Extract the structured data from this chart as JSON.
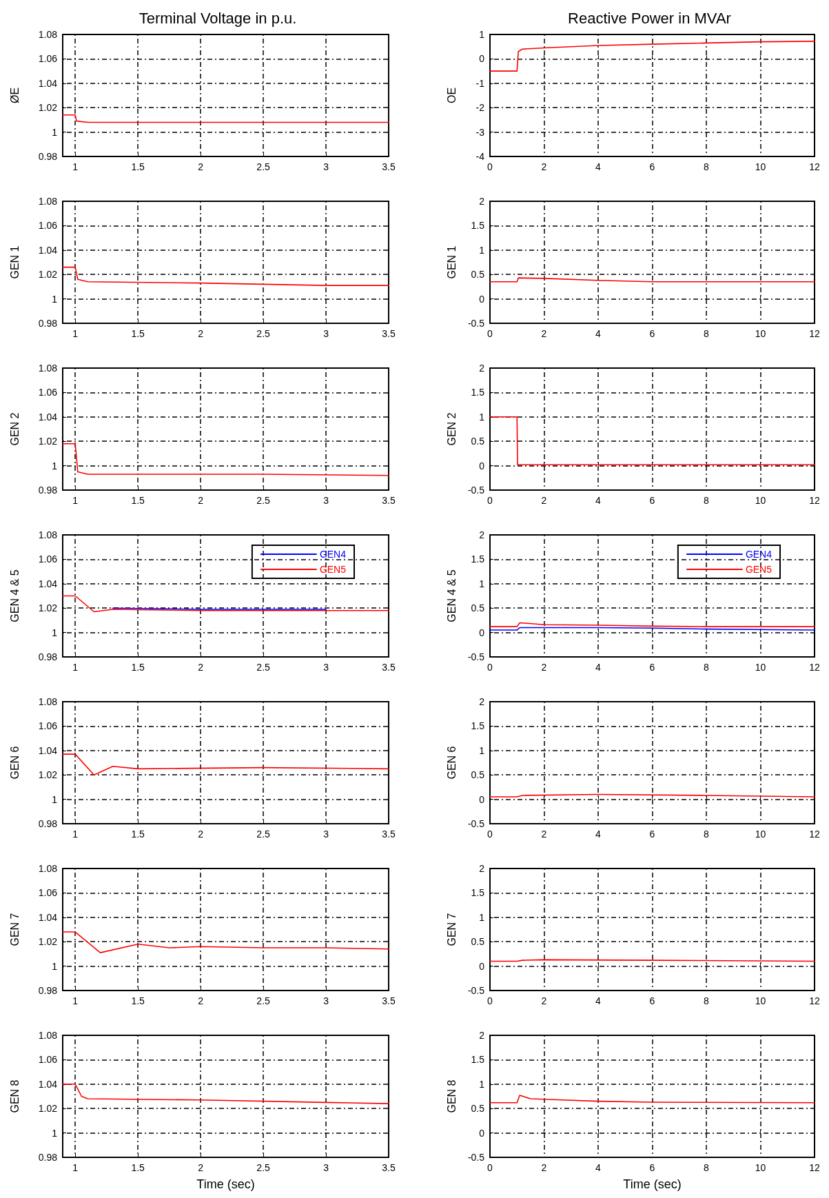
{
  "chart_data": [
    {
      "type": "line",
      "title": "Terminal Voltage in p.u.",
      "ylabel": "ØE",
      "x": [
        0.9,
        1,
        1.01,
        1.1,
        2,
        3,
        3.5
      ],
      "series": [
        {
          "color": "#ff0000",
          "values": [
            1.014,
            1.014,
            1.009,
            1.008,
            1.008,
            1.008,
            1.008
          ]
        }
      ],
      "xlim": [
        0.9,
        3.5
      ],
      "xticks": [
        1,
        1.5,
        2,
        2.5,
        3,
        3.5
      ],
      "ylim": [
        0.98,
        1.08
      ],
      "yticks": [
        0.98,
        1,
        1.02,
        1.04,
        1.06,
        1.08
      ],
      "grid": true
    },
    {
      "type": "line",
      "title": "Reactive Power in MVAr",
      "ylabel": "OE",
      "x": [
        0,
        1,
        1.05,
        1.2,
        2,
        4,
        6,
        8,
        10,
        12
      ],
      "series": [
        {
          "color": "#ff0000",
          "values": [
            -0.5,
            -0.5,
            0.3,
            0.4,
            0.45,
            0.55,
            0.6,
            0.65,
            0.7,
            0.72
          ]
        }
      ],
      "xlim": [
        0,
        12
      ],
      "xticks": [
        0,
        2,
        4,
        6,
        8,
        10,
        12
      ],
      "ylim": [
        -4,
        1
      ],
      "yticks": [
        -4,
        -3,
        -2,
        -1,
        0,
        1
      ],
      "grid": true
    },
    {
      "type": "line",
      "ylabel": "GEN 1",
      "x": [
        0.9,
        1,
        1.02,
        1.1,
        2,
        3,
        3.5
      ],
      "series": [
        {
          "color": "#ff0000",
          "values": [
            1.026,
            1.026,
            1.016,
            1.014,
            1.013,
            1.011,
            1.011
          ]
        }
      ],
      "xlim": [
        0.9,
        3.5
      ],
      "xticks": [
        1,
        1.5,
        2,
        2.5,
        3,
        3.5
      ],
      "ylim": [
        0.98,
        1.08
      ],
      "yticks": [
        0.98,
        1,
        1.02,
        1.04,
        1.06,
        1.08
      ],
      "grid": true
    },
    {
      "type": "line",
      "ylabel": "GEN 1",
      "x": [
        0,
        1,
        1.05,
        2,
        4,
        6,
        12
      ],
      "series": [
        {
          "color": "#ff0000",
          "values": [
            0.35,
            0.35,
            0.43,
            0.42,
            0.38,
            0.35,
            0.35
          ]
        }
      ],
      "xlim": [
        0,
        12
      ],
      "xticks": [
        0,
        2,
        4,
        6,
        8,
        10,
        12
      ],
      "ylim": [
        -0.5,
        2
      ],
      "yticks": [
        -0.5,
        0,
        0.5,
        1,
        1.5,
        2
      ],
      "grid": true
    },
    {
      "type": "line",
      "ylabel": "GEN 2",
      "x": [
        0.9,
        1,
        1.02,
        1.1,
        2.5,
        3.5
      ],
      "series": [
        {
          "color": "#ff0000",
          "values": [
            1.018,
            1.018,
            0.995,
            0.993,
            0.993,
            0.992
          ]
        }
      ],
      "xlim": [
        0.9,
        3.5
      ],
      "xticks": [
        1,
        1.5,
        2,
        2.5,
        3,
        3.5
      ],
      "ylim": [
        0.98,
        1.08
      ],
      "yticks": [
        0.98,
        1,
        1.02,
        1.04,
        1.06,
        1.08
      ],
      "grid": true
    },
    {
      "type": "line",
      "ylabel": "GEN 2",
      "x": [
        0,
        1,
        1.02,
        12
      ],
      "series": [
        {
          "color": "#ff0000",
          "values": [
            1,
            1,
            0.02,
            0.02
          ]
        }
      ],
      "xlim": [
        0,
        12
      ],
      "xticks": [
        0,
        2,
        4,
        6,
        8,
        10,
        12
      ],
      "ylim": [
        -0.5,
        2
      ],
      "yticks": [
        -0.5,
        0,
        0.5,
        1,
        1.5,
        2
      ],
      "grid": true
    },
    {
      "type": "line",
      "ylabel": "GEN 4 & 5",
      "x": [
        0.9,
        1,
        1.15,
        1.3,
        2,
        3,
        3.5
      ],
      "series": [
        {
          "name": "GEN4",
          "color": "#0000ff",
          "values": [
            null,
            null,
            null,
            1.02,
            1.019,
            1.019,
            null
          ]
        },
        {
          "name": "GEN5",
          "color": "#ff0000",
          "values": [
            1.03,
            1.03,
            1.017,
            1.019,
            1.018,
            1.018,
            1.018
          ]
        }
      ],
      "xlim": [
        0.9,
        3.5
      ],
      "xticks": [
        1,
        1.5,
        2,
        2.5,
        3,
        3.5
      ],
      "ylim": [
        0.98,
        1.08
      ],
      "yticks": [
        0.98,
        1,
        1.02,
        1.04,
        1.06,
        1.08
      ],
      "grid": true,
      "legend": "top right"
    },
    {
      "type": "line",
      "ylabel": "GEN 4 & 5",
      "x": [
        0,
        1,
        1.1,
        2,
        4,
        6,
        8,
        12
      ],
      "series": [
        {
          "name": "GEN4",
          "color": "#0000ff",
          "values": [
            0.05,
            0.05,
            0.1,
            0.1,
            0.1,
            0.09,
            0.07,
            0.05
          ]
        },
        {
          "name": "GEN5",
          "color": "#ff0000",
          "values": [
            0.12,
            0.12,
            0.2,
            0.16,
            0.15,
            0.13,
            0.12,
            0.12
          ]
        }
      ],
      "xlim": [
        0,
        12
      ],
      "xticks": [
        0,
        2,
        4,
        6,
        8,
        10,
        12
      ],
      "ylim": [
        -0.5,
        2
      ],
      "yticks": [
        -0.5,
        0,
        0.5,
        1,
        1.5,
        2
      ],
      "grid": true,
      "legend": "top right"
    },
    {
      "type": "line",
      "ylabel": "GEN 6",
      "x": [
        0.9,
        1,
        1.15,
        1.3,
        1.5,
        2.5,
        3.5
      ],
      "series": [
        {
          "color": "#ff0000",
          "values": [
            1.037,
            1.037,
            1.02,
            1.027,
            1.025,
            1.026,
            1.025
          ]
        }
      ],
      "xlim": [
        0.9,
        3.5
      ],
      "xticks": [
        1,
        1.5,
        2,
        2.5,
        3,
        3.5
      ],
      "ylim": [
        0.98,
        1.08
      ],
      "yticks": [
        0.98,
        1,
        1.02,
        1.04,
        1.06,
        1.08
      ],
      "grid": true
    },
    {
      "type": "line",
      "ylabel": "GEN 6",
      "x": [
        0,
        1,
        1.2,
        4,
        8,
        12
      ],
      "series": [
        {
          "color": "#ff0000",
          "values": [
            0.05,
            0.05,
            0.08,
            0.1,
            0.08,
            0.05
          ]
        }
      ],
      "xlim": [
        0,
        12
      ],
      "xticks": [
        0,
        2,
        4,
        6,
        8,
        10,
        12
      ],
      "ylim": [
        -0.5,
        2
      ],
      "yticks": [
        -0.5,
        0,
        0.5,
        1,
        1.5,
        2
      ],
      "grid": true
    },
    {
      "type": "line",
      "ylabel": "GEN 7",
      "x": [
        0.9,
        1,
        1.2,
        1.5,
        1.75,
        2,
        2.5,
        3,
        3.5
      ],
      "series": [
        {
          "color": "#ff0000",
          "values": [
            1.028,
            1.028,
            1.011,
            1.018,
            1.015,
            1.016,
            1.015,
            1.015,
            1.014
          ]
        }
      ],
      "xlim": [
        0.9,
        3.5
      ],
      "xticks": [
        1,
        1.5,
        2,
        2.5,
        3,
        3.5
      ],
      "ylim": [
        0.98,
        1.08
      ],
      "yticks": [
        0.98,
        1,
        1.02,
        1.04,
        1.06,
        1.08
      ],
      "grid": true
    },
    {
      "type": "line",
      "ylabel": "GEN 7",
      "x": [
        0,
        1,
        1.2,
        2,
        6,
        12
      ],
      "series": [
        {
          "color": "#ff0000",
          "values": [
            0.1,
            0.1,
            0.12,
            0.13,
            0.12,
            0.1
          ]
        }
      ],
      "xlim": [
        0,
        12
      ],
      "xticks": [
        0,
        2,
        4,
        6,
        8,
        10,
        12
      ],
      "ylim": [
        -0.5,
        2
      ],
      "yticks": [
        -0.5,
        0,
        0.5,
        1,
        1.5,
        2
      ],
      "grid": true
    },
    {
      "type": "line",
      "xlabel": "Time (sec)",
      "ylabel": "GEN 8",
      "x": [
        0.9,
        1,
        1.05,
        1.1,
        2,
        3,
        3.5
      ],
      "series": [
        {
          "color": "#ff0000",
          "values": [
            1.04,
            1.04,
            1.03,
            1.028,
            1.027,
            1.025,
            1.024
          ]
        }
      ],
      "xlim": [
        0.9,
        3.5
      ],
      "xticks": [
        1,
        1.5,
        2,
        2.5,
        3,
        3.5
      ],
      "ylim": [
        0.98,
        1.08
      ],
      "yticks": [
        0.98,
        1,
        1.02,
        1.04,
        1.06,
        1.08
      ],
      "grid": true
    },
    {
      "type": "line",
      "xlabel": "Time (sec)",
      "ylabel": "GEN 8",
      "x": [
        0,
        1,
        1.1,
        1.5,
        2.5,
        4,
        6,
        12
      ],
      "series": [
        {
          "color": "#ff0000",
          "values": [
            0.62,
            0.62,
            0.77,
            0.7,
            0.68,
            0.65,
            0.63,
            0.62
          ]
        }
      ],
      "xlim": [
        0,
        12
      ],
      "xticks": [
        0,
        2,
        4,
        6,
        8,
        10,
        12
      ],
      "ylim": [
        -0.5,
        2
      ],
      "yticks": [
        -0.5,
        0,
        0.5,
        1,
        1.5,
        2
      ],
      "grid": true
    }
  ]
}
